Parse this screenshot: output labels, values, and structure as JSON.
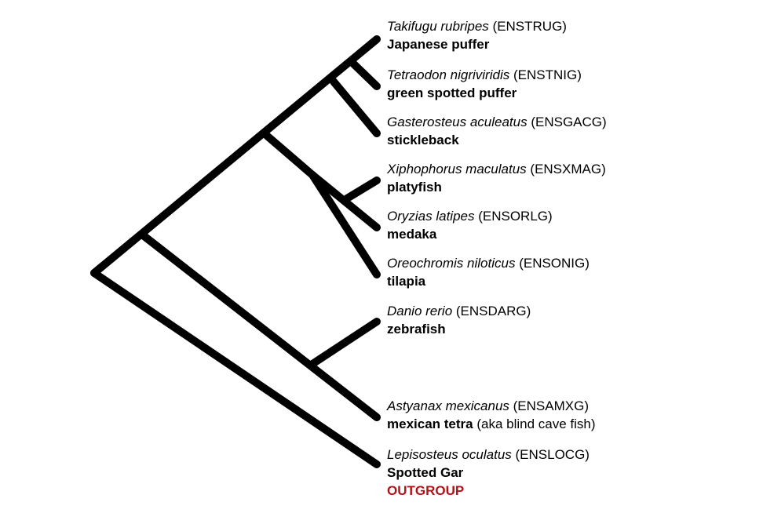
{
  "diagram": {
    "line_color": "#000000",
    "outgroup_color": "#b0141b",
    "taxa": [
      {
        "scientific": "Takifugu rubripes",
        "code": "(ENSTRUG)",
        "common": "Japanese puffer",
        "note": ""
      },
      {
        "scientific": "Tetraodon nigriviridis",
        "code": "(ENSTNIG)",
        "common": "green spotted puffer",
        "note": ""
      },
      {
        "scientific": "Gasterosteus aculeatus",
        "code": "(ENSGACG)",
        "common": "stickleback",
        "note": ""
      },
      {
        "scientific": "Xiphophorus maculatus",
        "code": "(ENSXMAG)",
        "common": "platyfish",
        "note": ""
      },
      {
        "scientific": "Oryzias latipes",
        "code": "(ENSORLG)",
        "common": "medaka",
        "note": ""
      },
      {
        "scientific": "Oreochromis niloticus",
        "code": "(ENSONIG)",
        "common": "tilapia",
        "note": ""
      },
      {
        "scientific": "Danio rerio",
        "code": "(ENSDARG)",
        "common": "zebrafish",
        "note": ""
      },
      {
        "scientific": "Astyanax mexicanus",
        "code": "(ENSAMXG)",
        "common": "mexican tetra",
        "note": "(aka blind cave fish)"
      },
      {
        "scientific": "Lepisosteus oculatus",
        "code": "(ENSLOCG)",
        "common": "Spotted Gar",
        "note": ""
      }
    ],
    "outgroup_label": "OUTGROUP"
  }
}
